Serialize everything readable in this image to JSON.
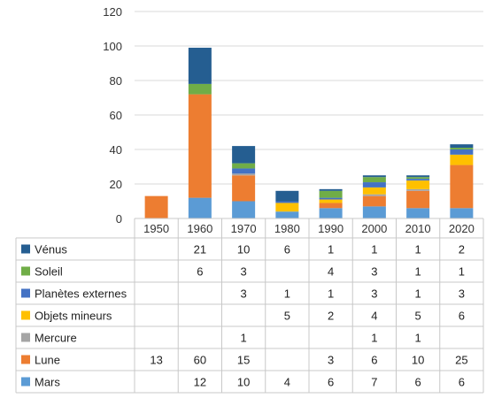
{
  "chart_data": {
    "type": "bar",
    "stacked": true,
    "categories": [
      "1950",
      "1960",
      "1970",
      "1980",
      "1990",
      "2000",
      "2010",
      "2020"
    ],
    "ylim": [
      0,
      120
    ],
    "yticks": [
      0,
      20,
      40,
      60,
      80,
      100,
      120
    ],
    "grid": true,
    "legend": "data-table",
    "series": [
      {
        "name": "Mars",
        "color": "#5b9bd5",
        "values": [
          null,
          12,
          10,
          4,
          6,
          7,
          6,
          6
        ]
      },
      {
        "name": "Lune",
        "color": "#ed7d31",
        "values": [
          13,
          60,
          15,
          null,
          3,
          6,
          10,
          25
        ]
      },
      {
        "name": "Mercure",
        "color": "#a5a5a5",
        "values": [
          null,
          null,
          1,
          null,
          null,
          1,
          1,
          null
        ]
      },
      {
        "name": "Objets mineurs",
        "color": "#ffc000",
        "values": [
          null,
          null,
          null,
          5,
          2,
          4,
          5,
          6
        ]
      },
      {
        "name": "Planètes externes",
        "color": "#4472c4",
        "values": [
          null,
          null,
          3,
          1,
          1,
          3,
          1,
          3
        ]
      },
      {
        "name": "Soleil",
        "color": "#70ad47",
        "values": [
          null,
          6,
          3,
          null,
          4,
          3,
          1,
          1
        ]
      },
      {
        "name": "Vénus",
        "color": "#255e91",
        "values": [
          null,
          21,
          10,
          6,
          1,
          1,
          1,
          2
        ]
      }
    ]
  }
}
